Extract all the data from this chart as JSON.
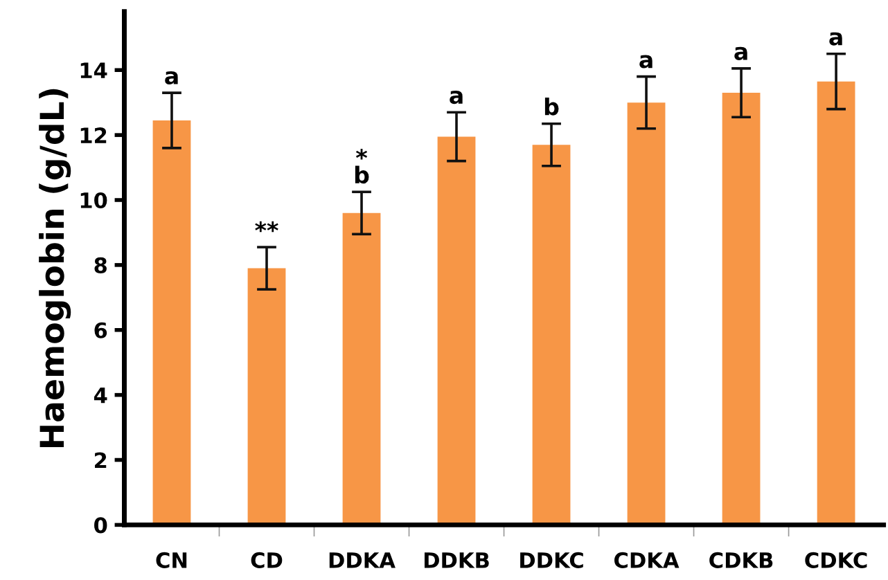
{
  "chart_data": {
    "type": "bar",
    "ylabel": "Haemoglobin (g/dL)",
    "categories": [
      "CN",
      "CD",
      "DDKA",
      "DDKB",
      "DDKC",
      "CDKA",
      "CDKB",
      "CDKC"
    ],
    "values": [
      12.45,
      7.9,
      9.6,
      11.95,
      11.7,
      13.0,
      13.3,
      13.65
    ],
    "errors": [
      0.85,
      0.65,
      0.65,
      0.75,
      0.65,
      0.8,
      0.75,
      0.85
    ],
    "color": "#f79646",
    "ylim": [
      0,
      15.8
    ],
    "yticks": [
      0,
      2,
      4,
      6,
      8,
      10,
      12,
      14
    ],
    "grid": false,
    "annotations": [
      {
        "text": "a",
        "x": "CN",
        "y": 13.3
      },
      {
        "text": "**",
        "x": "CD",
        "y": 8.55
      },
      {
        "text": "b",
        "x": "DDKA",
        "y": 10.25
      },
      {
        "text": "*",
        "x": "DDKA",
        "y": 10.25
      },
      {
        "text": "a",
        "x": "DDKB",
        "y": 12.7
      },
      {
        "text": "b",
        "x": "DDKC",
        "y": 12.35
      },
      {
        "text": "a",
        "x": "CDKA",
        "y": 13.8
      },
      {
        "text": "a",
        "x": "CDKB",
        "y": 14.05
      },
      {
        "text": "a",
        "x": "CDKC",
        "y": 14.5
      }
    ]
  }
}
